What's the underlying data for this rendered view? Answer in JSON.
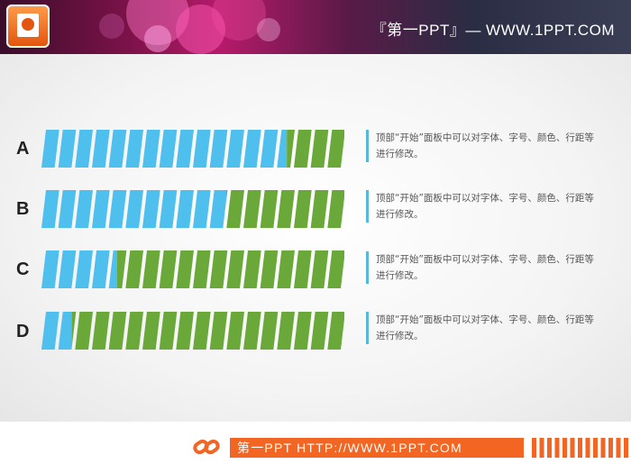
{
  "header": {
    "title": "『第一PPT』— WWW.1PPT.COM"
  },
  "footer": {
    "text": "第一PPT HTTP://WWW.1PPT.COM"
  },
  "colors": {
    "series_a": "#4fbfee",
    "series_b": "#6aa83a",
    "accent": "#f26522"
  },
  "rows": [
    {
      "label": "A",
      "description": "顶部“开始”面板中可以对字体、字号、颜色、行距等进行修改。"
    },
    {
      "label": "B",
      "description": "顶部“开始”面板中可以对字体、字号、颜色、行距等进行修改。"
    },
    {
      "label": "C",
      "description": "顶部“开始”面板中可以对字体、字号、颜色、行距等进行修改。"
    },
    {
      "label": "D",
      "description": "顶部“开始”面板中可以对字体、字号、颜色、行距等进行修改。"
    }
  ],
  "chart_data": {
    "type": "bar",
    "orientation": "horizontal",
    "stacked": true,
    "categories": [
      "A",
      "B",
      "C",
      "D"
    ],
    "series": [
      {
        "color": "#4fbfee",
        "values": [
          81,
          61,
          25,
          10
        ]
      },
      {
        "color": "#6aa83a",
        "values": [
          19,
          39,
          75,
          90
        ]
      }
    ],
    "ylim": [
      0,
      100
    ]
  }
}
